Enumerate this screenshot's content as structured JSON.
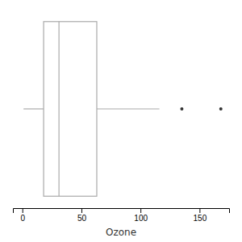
{
  "chart_data": {
    "type": "box",
    "xlabel": "Ozone",
    "orientation": "horizontal",
    "xlim": [
      -8,
      175
    ],
    "xticks": [
      0,
      50,
      100,
      150
    ],
    "whisker_low": 1,
    "q1": 18,
    "median": 31,
    "q3": 63,
    "whisker_high": 116,
    "outliers": [
      135,
      168
    ],
    "color": "#aaaaaa",
    "tick_labels": "x"
  }
}
